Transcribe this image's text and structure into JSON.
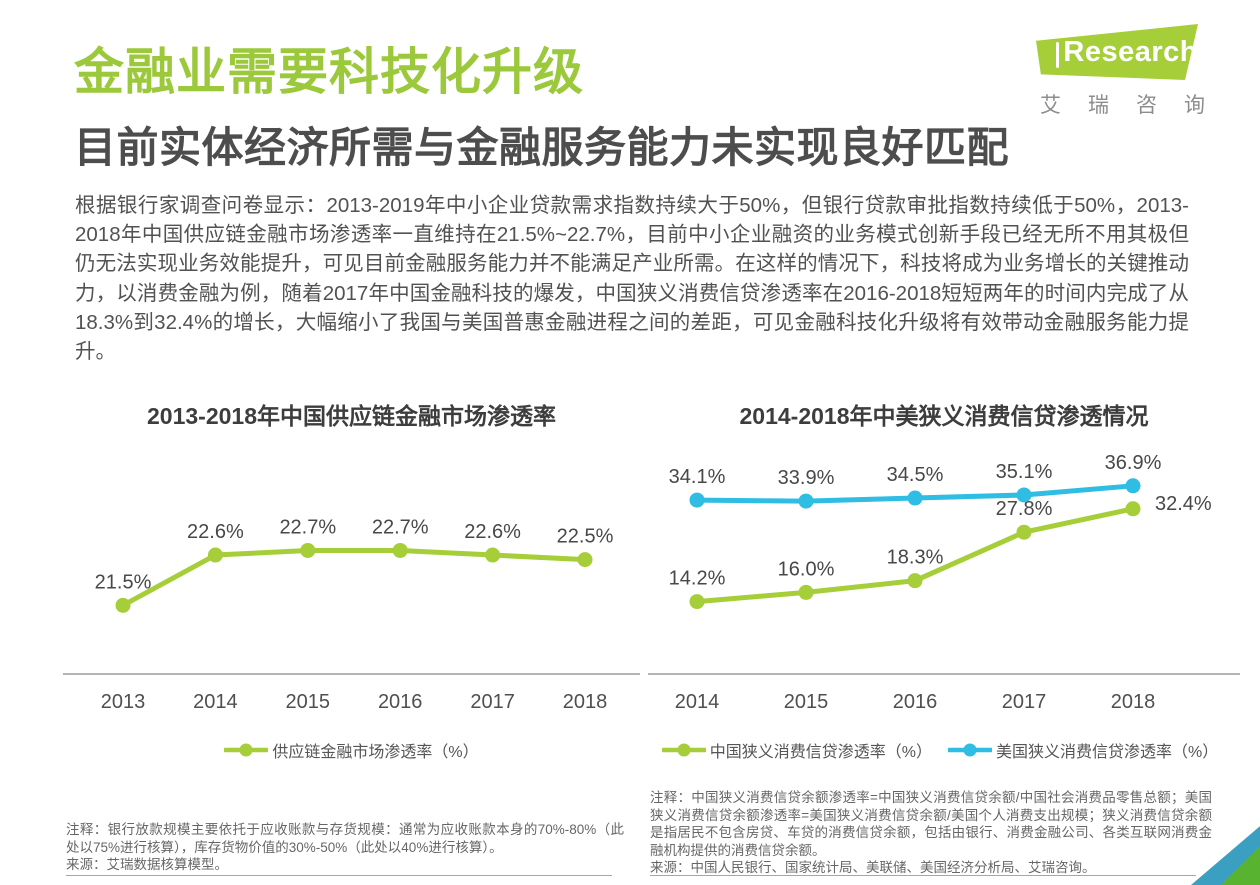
{
  "header": {
    "title": "金融业需要科技化升级",
    "subtitle": "目前实体经济所需与金融服务能力未实现良好匹配"
  },
  "logo": {
    "brand_i": "i",
    "brand_rest": "Research",
    "cn": "艾瑞咨询"
  },
  "intro": {
    "text": "根据银行家调查问卷显示：2013-2019年中小企业贷款需求指数持续大于50%，但银行贷款审批指数持续低于50%，2013-2018年中国供应链金融市场渗透率一直维持在21.5%~22.7%，目前中小企业融资的业务模式创新手段已经无所不用其极但仍无法实现业务效能提升，可见目前金融服务能力并不能满足产业所需。在这样的情况下，科技将成为业务增长的关键推动力，以消费金融为例，随着2017年中国金融科技的爆发，中国狭义消费信贷渗透率在2016-2018短短两年的时间内完成了从18.3%到32.4%的增长，大幅缩小了我国与美国普惠金融进程之间的差距，可见金融科技化升级将有效带动金融服务能力提升。"
  },
  "charts": [
    {
      "title": "2013-2018年中国供应链金融市场渗透率",
      "note": "注释：银行放款规模主要依托于应收账款与存货规模：通常为应收账款本身的70%-80%（此处以75%进行核算），库存货物价值的30%-50%（此处以40%进行核算）。",
      "source": "来源：艾瑞数据核算模型。"
    },
    {
      "title": "2014-2018年中美狭义消费信贷渗透情况",
      "note": "注释：中国狭义消费信贷余额渗透率=中国狭义消费信贷余额/中国社会消费品零售总额；美国狭义消费信贷余额渗透率=美国狭义消费信贷余额/美国个人消费支出规模；狭义消费信贷余额是指居民不包含房贷、车贷的消费信贷余额，包括由银行、消费金融公司、各类互联网消费金融机构提供的消费信贷余额。",
      "source": "来源：中国人民银行、国家统计局、美联储、美国经济分析局、艾瑞咨询。"
    }
  ],
  "chart_data": [
    {
      "type": "line",
      "title": "2013-2018年中国供应链金融市场渗透率",
      "categories": [
        "2013",
        "2014",
        "2015",
        "2016",
        "2017",
        "2018"
      ],
      "series": [
        {
          "name": "供应链金融市场渗透率（%）",
          "values": [
            21.5,
            22.6,
            22.7,
            22.7,
            22.6,
            22.5
          ],
          "color": "#a5ce38"
        }
      ],
      "ylim": [
        20,
        24
      ],
      "xlabel": "",
      "ylabel": "",
      "grid": false,
      "data_labels": true,
      "legend_position": "bottom"
    },
    {
      "type": "line",
      "title": "2014-2018年中美狭义消费信贷渗透情况",
      "categories": [
        "2014",
        "2015",
        "2016",
        "2017",
        "2018"
      ],
      "series": [
        {
          "name": "中国狭义消费信贷渗透率（%）",
          "values": [
            14.2,
            16.0,
            18.3,
            27.8,
            32.4
          ],
          "color": "#a5ce38"
        },
        {
          "name": "美国狭义消费信贷渗透率（%）",
          "values": [
            34.1,
            33.9,
            34.5,
            35.1,
            36.9
          ],
          "color": "#2fbde4"
        }
      ],
      "ylim": [
        0,
        40
      ],
      "xlabel": "",
      "ylabel": "",
      "grid": false,
      "data_labels": true,
      "legend_position": "bottom"
    }
  ],
  "colors": {
    "brand_green": "#a5ce38",
    "line_blue": "#2fbde4",
    "title_green": "#9cc93c",
    "heading_gray": "#4d4d4d",
    "logo_dot_blue": "#1d65a6",
    "corner_blue": "#3a9fc1",
    "corner_green": "#58b430"
  }
}
